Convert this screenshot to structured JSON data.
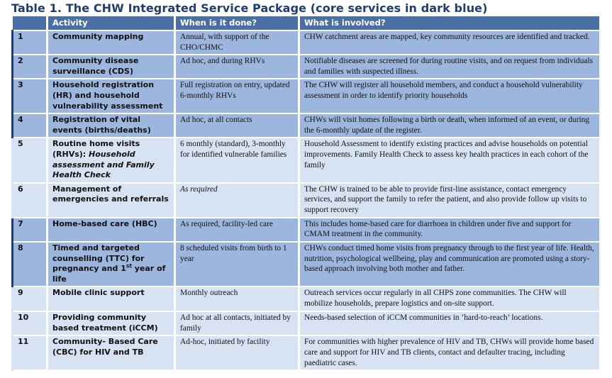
{
  "title": "Table 1. The CHW Integrated Service Package (core services in dark blue)",
  "headers": {
    "num": "",
    "activity": "Activity",
    "when": "When is it done?",
    "what": "What is involved?"
  },
  "colors": {
    "core_dark_blue": "#9db6dd",
    "light_blue": "#d7e2f2",
    "header": "#4a6fa5",
    "title": "#1f3d73"
  },
  "rows": [
    {
      "num": "1",
      "core": true,
      "activity": "Community mapping",
      "when": "Annual, with support of the CHO/CHMC",
      "what": "CHW catchment areas are mapped, key community resources are identified and tracked."
    },
    {
      "num": "2",
      "core": true,
      "activity": "Community disease surveillance (CDS)",
      "when": "Ad hoc, and during RHVs",
      "what": "Notifiable diseases are screened for during routine visits, and on request from individuals and families with suspected illness."
    },
    {
      "num": "3",
      "core": true,
      "activity": "Household registration (HR) and household vulnerability assessment",
      "when": "Full registration on entry, updated 6-monthly RHVs",
      "what": "The CHW will register all household members, and conduct a household vulnerability assessment in order to identify priority households"
    },
    {
      "num": "4",
      "core": true,
      "activity": "Registration of vital events (births/deaths)",
      "when": "Ad hoc, at all contacts",
      "what": "CHWs will visit homes following a birth or death, when informed of an event, or during the 6-monthly update of the register."
    },
    {
      "num": "5",
      "core": false,
      "activity_main": "Routine home visits (RHVs):",
      "activity_italic": "Household assessment and Family Health Check",
      "when": "6 monthly (standard), 3-monthly for identified vulnerable families",
      "what": "Household Assessment to identify existing practices and advise households on potential improvements. Family Health Check to assess key health practices in each cohort of the family"
    },
    {
      "num": "6",
      "core": false,
      "activity": "Management of emergencies and referrals",
      "when": "As required",
      "what": "The CHW is trained to be able to provide first-line assistance, contact emergency services, and support the family to refer the patient, and also provide follow up visits to support recovery"
    },
    {
      "num": "7",
      "core": true,
      "activity": "Home-based care (HBC)",
      "when": "As required, facility-led care",
      "what": "This includes home-based care for diarrhoea in children under five and support for CMAM treatment in the community."
    },
    {
      "num": "8",
      "core": true,
      "activity_main": "Timed and targeted counselling (TTC) for pregnancy and 1",
      "activity_sup": "st",
      "activity_tail": " year of life",
      "when": "8 scheduled visits from birth to 1 year",
      "what": "CHWs conduct timed home visits from pregnancy through to the first year of life. Health, nutrition, psychological wellbeing, play and communication are promoted using a story-based approach involving both mother and father."
    },
    {
      "num": "9",
      "core": false,
      "activity": "Mobile clinic support",
      "when": "Monthly outreach",
      "what": "Outreach services occur regularly in all CHPS zone communities. The CHW will mobilize households, prepare logistics and on-site support."
    },
    {
      "num": "10",
      "core": false,
      "activity": "Providing community based treatment (iCCM)",
      "when": "Ad hoc at all contacts, initiated by family",
      "what": "Needs-based selection of iCCM communities in ‘hard-to-reach’ locations."
    },
    {
      "num": "11",
      "core": false,
      "activity": "Community- Based Care (CBC) for HIV and TB",
      "when": "Ad-hoc, initiated by facility",
      "what": "For communities with higher prevalence of HIV and TB, CHWs will provide home based care and support for HIV and TB clients, contact and defaulter tracing, including paediatric cases."
    }
  ]
}
